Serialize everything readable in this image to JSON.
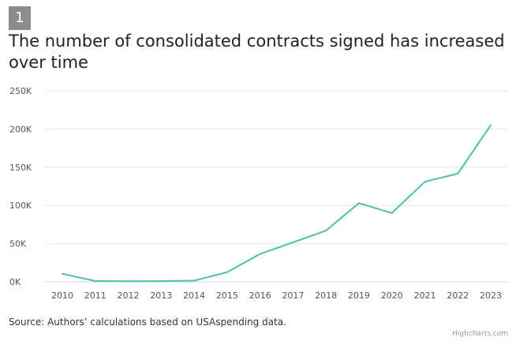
{
  "badge": "1",
  "title": "The number of consolidated contracts signed has increased over time",
  "source": "Source: Authors’ calculations based on USAspending data.",
  "credits": "Highcharts.com",
  "colors": {
    "series": "#4dbfad",
    "grid": "#e6e6e6",
    "axis_line": "#ccd6eb",
    "badge_bg": "#8c8c8c"
  },
  "chart_data": {
    "type": "line",
    "title": "The number of consolidated contracts signed has increased over time",
    "xlabel": "",
    "ylabel": "",
    "grid": true,
    "legend": "none",
    "ylim": [
      0,
      250000
    ],
    "yticks": [
      {
        "value": 0,
        "label": "0K"
      },
      {
        "value": 50000,
        "label": "50K"
      },
      {
        "value": 100000,
        "label": "100K"
      },
      {
        "value": 150000,
        "label": "150K"
      },
      {
        "value": 200000,
        "label": "200K"
      },
      {
        "value": 250000,
        "label": "250K"
      }
    ],
    "x": [
      "2010",
      "2011",
      "2012",
      "2013",
      "2014",
      "2015",
      "2016",
      "2017",
      "2018",
      "2019",
      "2020",
      "2021",
      "2022",
      "2023"
    ],
    "series": [
      {
        "values": [
          10500,
          1000,
          800,
          900,
          1500,
          12500,
          36500,
          51500,
          67000,
          103000,
          90000,
          131000,
          141500,
          205000
        ]
      }
    ]
  }
}
